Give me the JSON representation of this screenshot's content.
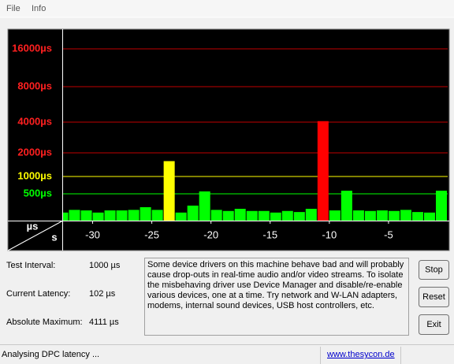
{
  "menu": [
    "File",
    "Info"
  ],
  "chart_data": {
    "type": "bar",
    "x_label": "s",
    "y_label": "µs",
    "x": [
      -32.5,
      -31.5,
      -30.5,
      -29.5,
      -28.5,
      -27.5,
      -26.5,
      -25.5,
      -24.5,
      -23.5,
      -22.5,
      -21.5,
      -20.5,
      -19.5,
      -18.5,
      -17.5,
      -16.5,
      -15.5,
      -14.5,
      -13.5,
      -12.5,
      -11.5,
      -10.5,
      -9.5,
      -8.5,
      -7.5,
      -6.5,
      -5.5,
      -4.5,
      -3.5,
      -2.5,
      -1.5,
      -0.5
    ],
    "values": [
      150,
      200,
      190,
      150,
      190,
      190,
      200,
      250,
      200,
      1650,
      150,
      280,
      570,
      200,
      180,
      220,
      180,
      180,
      150,
      180,
      160,
      220,
      4111,
      190,
      590,
      190,
      180,
      190,
      180,
      200,
      160,
      150,
      590
    ],
    "colors": [
      "#00ff00",
      "#00ff00",
      "#00ff00",
      "#00ff00",
      "#00ff00",
      "#00ff00",
      "#00ff00",
      "#00ff00",
      "#00ff00",
      "#ffff00",
      "#00ff00",
      "#00ff00",
      "#00ff00",
      "#00ff00",
      "#00ff00",
      "#00ff00",
      "#00ff00",
      "#00ff00",
      "#00ff00",
      "#00ff00",
      "#00ff00",
      "#00ff00",
      "#ff0000",
      "#00ff00",
      "#00ff00",
      "#00ff00",
      "#00ff00",
      "#00ff00",
      "#00ff00",
      "#00ff00",
      "#00ff00",
      "#00ff00",
      "#00ff00"
    ],
    "xlim": [
      -32.5,
      0
    ],
    "xticks": [
      -30,
      -25,
      -20,
      -15,
      -10,
      -5
    ],
    "ylim": [
      0,
      22000
    ],
    "yticks": [
      {
        "value": 500,
        "label": "500µs"
      },
      {
        "value": 1000,
        "label": "1000µs"
      },
      {
        "value": 2000,
        "label": "2000µs"
      },
      {
        "value": 4000,
        "label": "4000µs"
      },
      {
        "value": 8000,
        "label": "8000µs"
      },
      {
        "value": 16000,
        "label": "16000µs"
      }
    ],
    "tick_colors": [
      "#00ff00",
      "#ffff00",
      "#ff2020",
      "#ff2020",
      "#ff2020",
      "#ff2020"
    ],
    "grid": true
  },
  "info": [
    {
      "label": "Test Interval:",
      "value": "1000 µs"
    },
    {
      "label": "Current Latency:",
      "value": "102 µs"
    },
    {
      "label": "Absolute Maximum:",
      "value": "4111 µs"
    }
  ],
  "message": [
    "Some device drivers on this machine behave bad and will probably",
    "cause drop-outs in real-time audio and/or video streams. To isolate",
    "the misbehaving driver use Device Manager and disable/re-enable",
    "various devices, one at a time. Try network and W-LAN adapters,",
    "modems, internal sound devices, USB host controllers, etc."
  ],
  "buttons": [
    "Stop",
    "Reset",
    "Exit"
  ],
  "status": {
    "text": "Analysing DPC latency ...",
    "link": "www.thesycon.de"
  }
}
